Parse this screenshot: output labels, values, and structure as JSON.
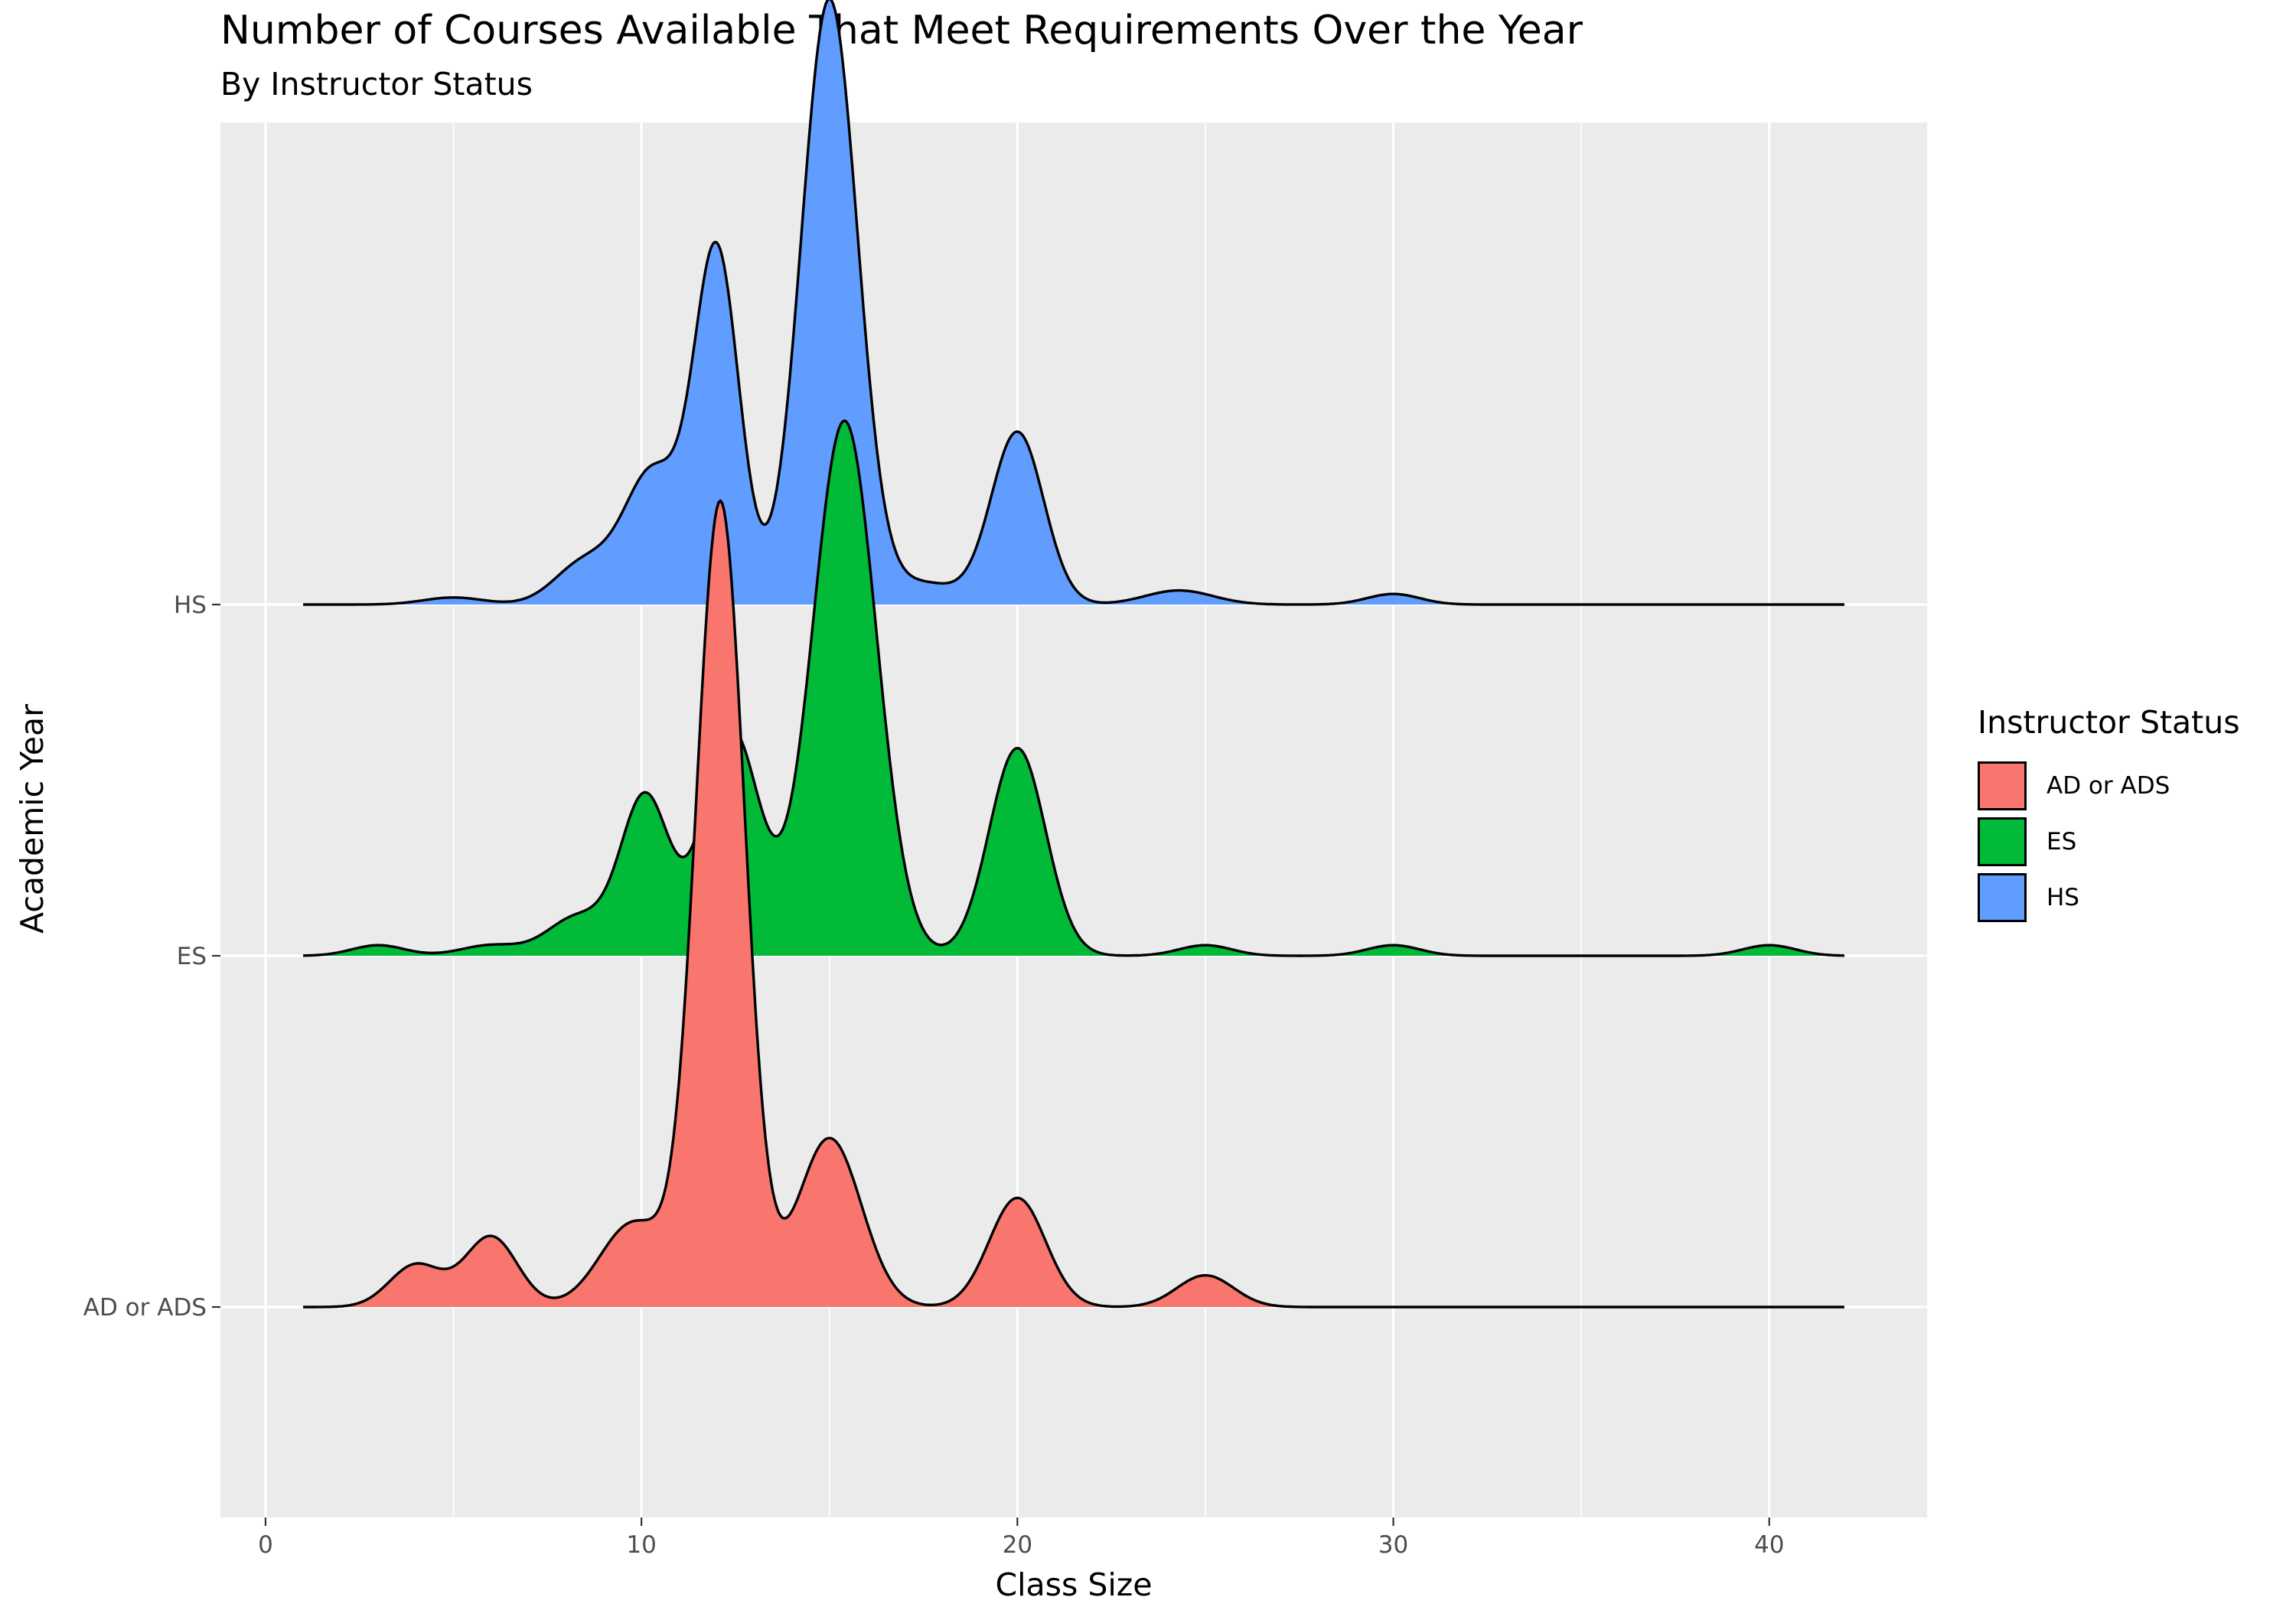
{
  "chart_data": {
    "type": "ridgeline",
    "title": "Number of Courses Available That Meet Requirements Over the Year",
    "subtitle": "By Instructor Status",
    "xlabel": "Class Size",
    "ylabel": "Academic Year",
    "xlim": [
      -1.2,
      44.2
    ],
    "x_ticks": [
      0,
      10,
      20,
      30,
      40
    ],
    "x_tick_labels": [
      "0",
      "10",
      "20",
      "30",
      "40"
    ],
    "y_tick_labels": [
      "AD or ADS",
      "ES",
      "HS"
    ],
    "density_range": [
      1,
      42
    ],
    "grid": true,
    "legend_title": "Instructor Status",
    "legend_position": "right",
    "series": [
      {
        "name": "AD or ADS",
        "color": "#F8766D",
        "components": [
          {
            "mu": 4.0,
            "sigma": 0.7,
            "w": 0.6
          },
          {
            "mu": 6.0,
            "sigma": 0.7,
            "w": 1.0
          },
          {
            "mu": 9.8,
            "sigma": 0.9,
            "w": 1.2
          },
          {
            "mu": 12.1,
            "sigma": 0.65,
            "w": 11.4
          },
          {
            "mu": 15.0,
            "sigma": 0.85,
            "w": 2.4
          },
          {
            "mu": 20.0,
            "sigma": 0.75,
            "w": 1.55
          },
          {
            "mu": 25.0,
            "sigma": 0.75,
            "w": 0.45
          }
        ]
      },
      {
        "name": "ES",
        "color": "#00BA38",
        "components": [
          {
            "mu": 3.0,
            "sigma": 0.7,
            "w": 0.15
          },
          {
            "mu": 6.0,
            "sigma": 0.8,
            "w": 0.15
          },
          {
            "mu": 8.3,
            "sigma": 0.8,
            "w": 0.55
          },
          {
            "mu": 10.1,
            "sigma": 0.65,
            "w": 2.25
          },
          {
            "mu": 12.4,
            "sigma": 0.75,
            "w": 3.2
          },
          {
            "mu": 15.4,
            "sigma": 0.85,
            "w": 7.6
          },
          {
            "mu": 20.0,
            "sigma": 0.75,
            "w": 2.95
          },
          {
            "mu": 25.0,
            "sigma": 0.7,
            "w": 0.15
          },
          {
            "mu": 30.0,
            "sigma": 0.7,
            "w": 0.15
          },
          {
            "mu": 40.0,
            "sigma": 0.7,
            "w": 0.15
          }
        ]
      },
      {
        "name": "HS",
        "color": "#619CFF",
        "components": [
          {
            "mu": 5.0,
            "sigma": 0.8,
            "w": 0.1
          },
          {
            "mu": 8.5,
            "sigma": 0.8,
            "w": 0.6
          },
          {
            "mu": 10.3,
            "sigma": 0.75,
            "w": 1.85
          },
          {
            "mu": 12.0,
            "sigma": 0.6,
            "w": 5.0
          },
          {
            "mu": 15.0,
            "sigma": 0.75,
            "w": 8.6
          },
          {
            "mu": 17.5,
            "sigma": 0.9,
            "w": 0.3
          },
          {
            "mu": 20.0,
            "sigma": 0.7,
            "w": 2.45
          },
          {
            "mu": 24.3,
            "sigma": 0.9,
            "w": 0.2
          },
          {
            "mu": 30.0,
            "sigma": 0.7,
            "w": 0.15
          }
        ]
      }
    ]
  }
}
